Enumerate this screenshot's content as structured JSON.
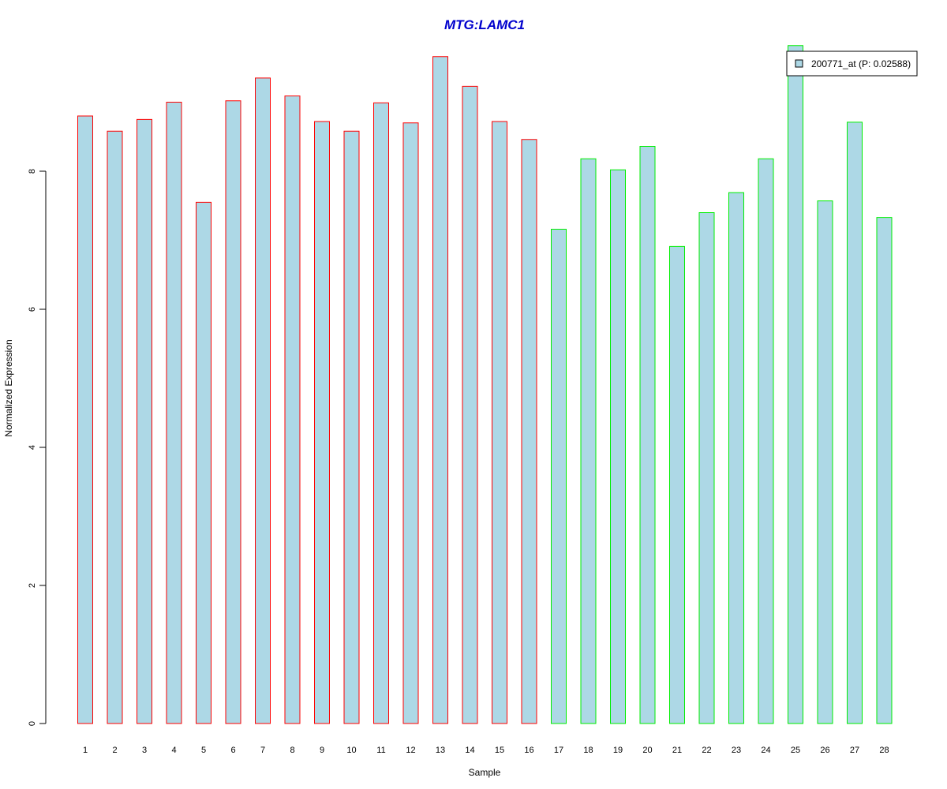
{
  "chart_data": {
    "type": "bar",
    "title": "MTG:LAMC1",
    "xlabel": "Sample",
    "ylabel": "Normalized Expression",
    "categories": [
      "1",
      "2",
      "3",
      "4",
      "5",
      "6",
      "7",
      "8",
      "9",
      "10",
      "11",
      "12",
      "13",
      "14",
      "15",
      "16",
      "17",
      "18",
      "19",
      "20",
      "21",
      "22",
      "23",
      "24",
      "25",
      "26",
      "27",
      "28"
    ],
    "series": [
      {
        "name": "200771_at (P: 0.02588)",
        "values": [
          8.8,
          8.58,
          8.75,
          9.0,
          7.55,
          9.02,
          9.35,
          9.09,
          8.72,
          8.58,
          8.99,
          8.7,
          9.66,
          9.23,
          8.72,
          8.46,
          7.16,
          8.18,
          8.02,
          8.36,
          6.91,
          7.4,
          7.69,
          8.18,
          9.82,
          7.57,
          8.71,
          7.33
        ]
      }
    ],
    "group_border_colors": [
      "#ff0000",
      "#ff0000",
      "#ff0000",
      "#ff0000",
      "#ff0000",
      "#ff0000",
      "#ff0000",
      "#ff0000",
      "#ff0000",
      "#ff0000",
      "#ff0000",
      "#ff0000",
      "#ff0000",
      "#ff0000",
      "#ff0000",
      "#ff0000",
      "#00ee00",
      "#00ee00",
      "#00ee00",
      "#00ee00",
      "#00ee00",
      "#00ee00",
      "#00ee00",
      "#00ee00",
      "#00ee00",
      "#00ee00",
      "#00ee00",
      "#00ee00"
    ],
    "bar_fill_color": "#add8e6",
    "title_color": "#0000cd",
    "yticks": [
      0,
      2,
      4,
      6,
      8
    ],
    "ylim": [
      0,
      10
    ],
    "legend_position": "top-right",
    "grid": false
  }
}
